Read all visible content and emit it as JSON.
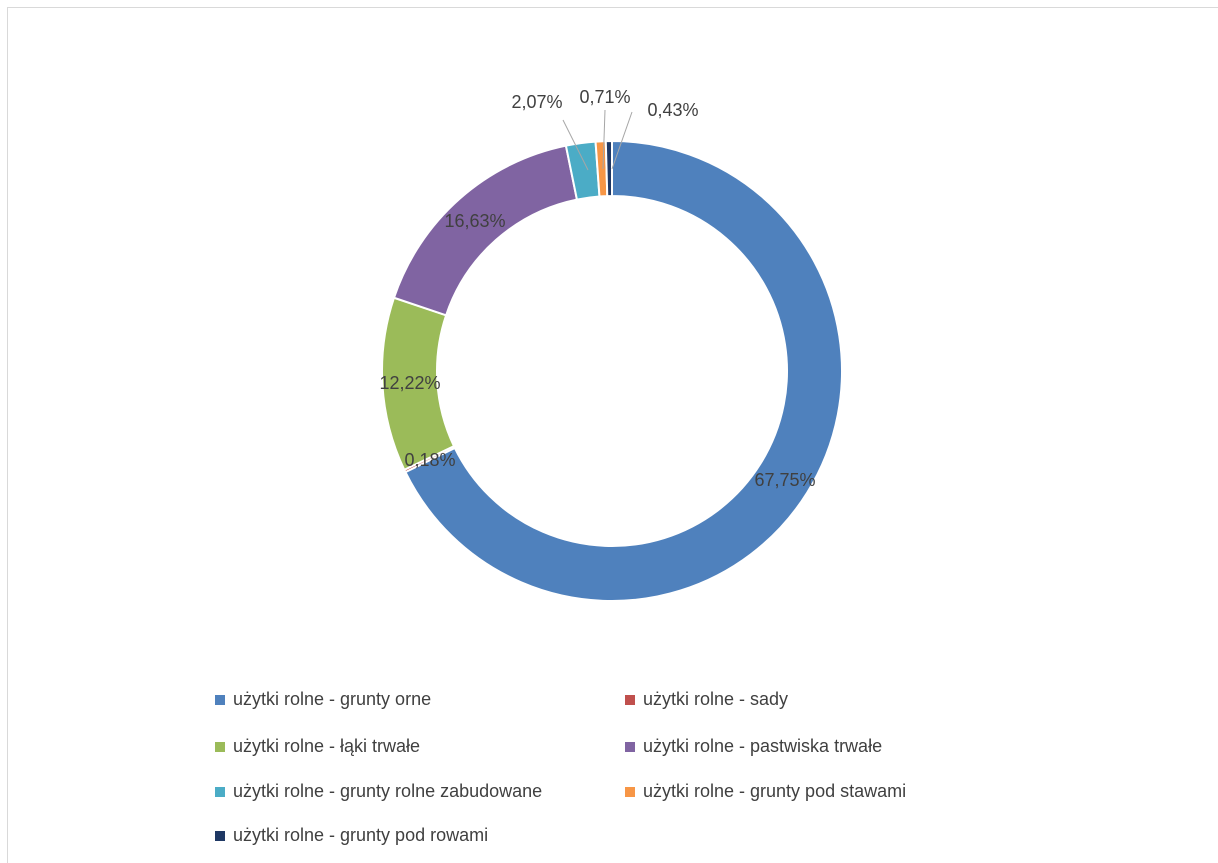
{
  "chart_data": {
    "type": "doughnut",
    "categories": [
      "użytki rolne - grunty orne",
      "użytki rolne - sady",
      "użytki rolne - łąki trwałe",
      "użytki rolne - pastwiska trwałe",
      "użytki rolne - grunty rolne zabudowane",
      "użytki rolne - grunty pod stawami",
      "użytki rolne - grunty pod rowami"
    ],
    "values": [
      67.75,
      0.18,
      12.22,
      16.63,
      2.07,
      0.71,
      0.43
    ],
    "value_labels": [
      "67,75%",
      "0,18%",
      "12,22%",
      "16,63%",
      "2,07%",
      "0,71%",
      "0,43%"
    ],
    "colors": [
      "#4f81bd",
      "#c0504d",
      "#9bbb59",
      "#8064a2",
      "#4bacc6",
      "#f79646",
      "#1f3864"
    ],
    "legend": "bottom"
  }
}
